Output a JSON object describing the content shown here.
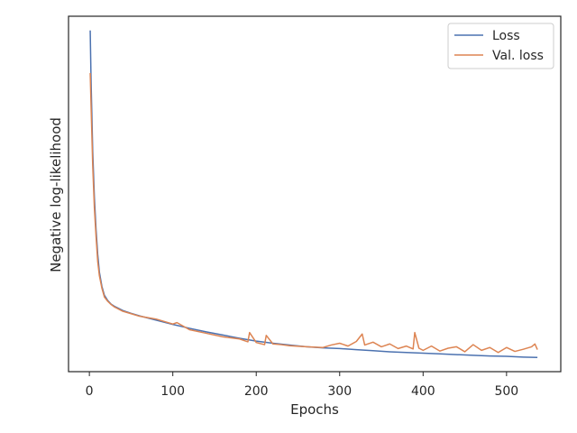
{
  "chart_data": {
    "type": "line",
    "title": "",
    "xlabel": "Epochs",
    "ylabel": "Negative log-likelihood",
    "xlim": [
      -25,
      565
    ],
    "ylim": [
      0,
      100
    ],
    "x_ticks": [
      0,
      100,
      200,
      300,
      400,
      500
    ],
    "x_tick_labels": [
      "0",
      "100",
      "200",
      "300",
      "400",
      "500"
    ],
    "y_ticks_visible": false,
    "grid": false,
    "legend": "top-right",
    "series": [
      {
        "name": "Loss",
        "color": "#4c72b0",
        "x": [
          1,
          2,
          4,
          6,
          8,
          10,
          12,
          15,
          18,
          22,
          26,
          30,
          40,
          50,
          60,
          80,
          100,
          120,
          140,
          160,
          180,
          200,
          220,
          240,
          260,
          280,
          300,
          320,
          340,
          360,
          380,
          400,
          420,
          440,
          460,
          480,
          500,
          520,
          537
        ],
        "y": [
          96,
          82,
          62,
          49,
          40,
          33,
          28,
          24,
          21.5,
          20,
          19,
          18.4,
          17.2,
          16.4,
          15.7,
          14.5,
          13.3,
          12.2,
          11.2,
          10.3,
          9.4,
          8.6,
          8.0,
          7.5,
          7.0,
          6.7,
          6.5,
          6.2,
          5.9,
          5.6,
          5.4,
          5.2,
          5.0,
          4.8,
          4.6,
          4.4,
          4.3,
          4.1,
          4.0
        ]
      },
      {
        "name": "Val. loss",
        "color": "#dd8452",
        "x": [
          1,
          2,
          4,
          6,
          8,
          10,
          12,
          15,
          18,
          22,
          26,
          30,
          40,
          50,
          60,
          70,
          80,
          100,
          105,
          120,
          140,
          160,
          180,
          190,
          192,
          200,
          210,
          212,
          220,
          230,
          240,
          260,
          280,
          290,
          300,
          310,
          320,
          327,
          330,
          340,
          350,
          360,
          370,
          380,
          388,
          390,
          395,
          400,
          410,
          420,
          430,
          440,
          450,
          460,
          470,
          480,
          490,
          500,
          510,
          520,
          530,
          534,
          537
        ],
        "y": [
          84,
          75,
          58,
          46,
          38,
          31,
          27,
          23.5,
          21,
          19.8,
          18.9,
          18.2,
          17.0,
          16.3,
          15.6,
          15.2,
          14.8,
          13.4,
          13.8,
          11.8,
          10.8,
          9.8,
          9.2,
          8.4,
          11.0,
          8.2,
          7.6,
          10.2,
          7.8,
          7.6,
          7.3,
          7.0,
          6.8,
          7.5,
          8.0,
          7.2,
          8.5,
          10.6,
          7.5,
          8.3,
          7.0,
          7.8,
          6.5,
          7.2,
          6.4,
          11.0,
          6.6,
          6.0,
          7.2,
          5.8,
          6.6,
          7.0,
          5.6,
          7.6,
          6.0,
          6.8,
          5.4,
          6.8,
          5.7,
          6.3,
          7.0,
          7.8,
          6.2
        ]
      }
    ]
  }
}
